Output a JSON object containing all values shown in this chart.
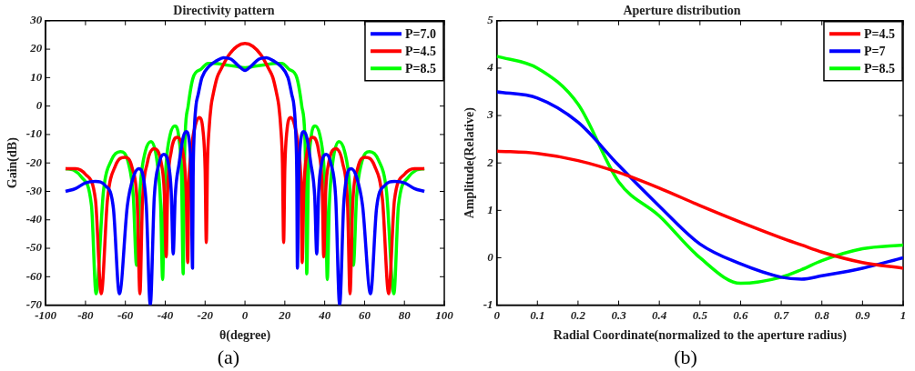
{
  "chart_data": [
    {
      "type": "line",
      "title": "Directivity pattern",
      "xlabel": "θ(degree)",
      "ylabel": "Gain(dB)",
      "annotations": [
        "(a)"
      ],
      "xlim": [
        -100,
        100
      ],
      "xticks": [
        -100,
        -80,
        -60,
        -40,
        -20,
        0,
        20,
        40,
        60,
        80,
        100
      ],
      "ylim": [
        -70,
        30
      ],
      "yticks": [
        -70,
        -60,
        -50,
        -40,
        -30,
        -20,
        -10,
        0,
        10,
        20,
        30
      ],
      "grid": false,
      "legend": "top right",
      "marker": "none",
      "line_style": "solid",
      "series": [
        {
          "name": "P=7.0",
          "color": "#0000ff",
          "x": [
            -90,
            -85,
            -80,
            -75,
            -70,
            -66,
            -63,
            -59,
            -56,
            -53.3,
            -51,
            -49.5,
            -47.5,
            -45.5,
            -43,
            -40.8,
            -38.5,
            -37,
            -36,
            -35,
            -33,
            -31,
            -29.5,
            -28,
            -27,
            -26.3,
            -26,
            -25.5,
            -24.6,
            -23.5,
            -21.6,
            -18,
            -14,
            -10.8,
            -7,
            -3,
            0,
            3,
            7,
            10.8,
            14,
            18,
            21.6,
            23.5,
            24.6,
            25.5,
            26,
            26.3,
            27,
            28,
            29.5,
            31,
            33,
            35,
            36,
            37,
            38.5,
            40.8,
            43,
            45.5,
            47.5,
            49.5,
            51,
            53.3,
            56,
            59,
            63,
            66,
            70,
            75,
            80,
            85,
            90
          ],
          "values": [
            -30,
            -29,
            -27,
            -26.5,
            -28,
            -36,
            -66,
            -35,
            -25,
            -22,
            -25,
            -35,
            -70,
            -32,
            -20,
            -17,
            -20,
            -30,
            -52,
            -32,
            -20,
            -11,
            -9,
            -12,
            -25,
            -57,
            -25,
            -10,
            0,
            4,
            10,
            14,
            16,
            17,
            16.5,
            14,
            12.5,
            14,
            16.5,
            17,
            16,
            14,
            10,
            4,
            0,
            -10,
            -25,
            -57,
            -25,
            -12,
            -9,
            -11,
            -20,
            -32,
            -52,
            -30,
            -20,
            -17,
            -20,
            -32,
            -70,
            -35,
            -25,
            -22,
            -25,
            -35,
            -66,
            -36,
            -28,
            -26.5,
            -27,
            -29,
            -30
          ]
        },
        {
          "name": "P=4.5",
          "color": "#ff0000",
          "x": [
            -90,
            -85,
            -80,
            -75,
            -72.1,
            -69,
            -65,
            -60.3,
            -56.5,
            -54,
            -52.7,
            -51.5,
            -49,
            -45.6,
            -42,
            -40.5,
            -39.5,
            -38.8,
            -37,
            -34,
            -31,
            -29.5,
            -28.7,
            -28.2,
            -27,
            -25,
            -23,
            -21,
            -20,
            -19.4,
            -18.8,
            -18,
            -17,
            -16,
            -14,
            -12,
            -8,
            -4,
            0,
            4,
            8,
            12,
            14,
            16,
            17,
            18,
            18.8,
            19.4,
            20,
            21,
            23,
            25,
            27,
            28.2,
            28.7,
            29.5,
            31,
            34,
            37,
            38.8,
            39.5,
            40.5,
            42,
            45.6,
            49,
            51.5,
            52.7,
            54,
            56.5,
            60.3,
            65,
            69,
            72.1,
            75,
            80,
            85,
            90
          ],
          "values": [
            -22,
            -22,
            -24,
            -33,
            -66,
            -33,
            -21,
            -18,
            -22,
            -35,
            -66,
            -35,
            -20,
            -15,
            -20,
            -30,
            -53,
            -30,
            -16,
            -11,
            -17,
            -30,
            -55,
            -30,
            -16,
            -7,
            -4,
            -9,
            -22,
            -48,
            -20,
            -8,
            0,
            4,
            10,
            13,
            18,
            21,
            22,
            21,
            18,
            13,
            10,
            4,
            0,
            -8,
            -20,
            -48,
            -22,
            -9,
            -4,
            -7,
            -16,
            -30,
            -55,
            -30,
            -17,
            -11,
            -16,
            -30,
            -53,
            -30,
            -20,
            -15,
            -20,
            -35,
            -66,
            -35,
            -22,
            -18,
            -21,
            -33,
            -66,
            -33,
            -24,
            -22,
            -22
          ]
        },
        {
          "name": "P=8.5",
          "color": "#00ff00",
          "x": [
            -90,
            -86,
            -82,
            -77,
            -74.7,
            -71,
            -67,
            -62.5,
            -58.5,
            -56,
            -54.4,
            -52.5,
            -50,
            -47.1,
            -44,
            -42.3,
            -41.3,
            -40.5,
            -39.5,
            -37.5,
            -35.2,
            -33,
            -31.8,
            -31,
            -30.5,
            -30,
            -28.5,
            -26,
            -22,
            -18.5,
            -15,
            -10,
            -5,
            0,
            5,
            10,
            15,
            18.5,
            22,
            26,
            28.5,
            30,
            30.5,
            31,
            31.8,
            33,
            35.2,
            37.5,
            39.5,
            40.5,
            41.3,
            42.3,
            44,
            47.1,
            50,
            52.5,
            54.4,
            56,
            58.5,
            62.5,
            67,
            71,
            74.7,
            77,
            82,
            86,
            90
          ],
          "values": [
            -22,
            -22.5,
            -25,
            -35,
            -66,
            -30,
            -19,
            -16,
            -20,
            -32,
            -56,
            -28,
            -16,
            -12.5,
            -20,
            -35,
            -61,
            -35,
            -20,
            -10,
            -7,
            -12,
            -25,
            -59,
            -25,
            -10,
            0,
            10,
            13,
            15,
            15,
            14.5,
            14,
            13.5,
            14,
            14.5,
            15,
            15,
            13,
            10,
            0,
            -10,
            -25,
            -59,
            -25,
            -12,
            -7,
            -10,
            -20,
            -35,
            -61,
            -35,
            -20,
            -12.5,
            -16,
            -28,
            -56,
            -32,
            -20,
            -16,
            -19,
            -30,
            -66,
            -35,
            -25,
            -22.5,
            -22
          ]
        }
      ]
    },
    {
      "type": "line",
      "title": "Aperture distribution",
      "xlabel": "Radial Coordinate(normalized to the aperture radius)",
      "ylabel": "Amplitude(Relative)",
      "annotations": [
        "(b)"
      ],
      "xlim": [
        0,
        1
      ],
      "xticks": [
        0,
        0.1,
        0.2,
        0.3,
        0.4,
        0.5,
        0.6,
        0.7,
        0.8,
        0.9,
        1
      ],
      "ylim": [
        -1,
        5
      ],
      "yticks": [
        -1,
        0,
        1,
        2,
        3,
        4,
        5
      ],
      "grid": false,
      "legend": "top right",
      "marker": "none",
      "line_style": "solid",
      "x": [
        0,
        0.1,
        0.2,
        0.3,
        0.4,
        0.5,
        0.6,
        0.7,
        0.75,
        0.8,
        0.9,
        1
      ],
      "series": [
        {
          "name": "P=4.5",
          "color": "#ff0000",
          "values": [
            2.25,
            2.2,
            2.05,
            1.8,
            1.47,
            1.1,
            0.75,
            0.42,
            0.27,
            0.12,
            -0.1,
            -0.22
          ]
        },
        {
          "name": "P=7",
          "color": "#0000ff",
          "values": [
            3.5,
            3.37,
            2.86,
            1.95,
            1.09,
            0.29,
            -0.13,
            -0.41,
            -0.45,
            -0.38,
            -0.22,
            0
          ]
        },
        {
          "name": "P=8.5",
          "color": "#00ff00",
          "values": [
            4.25,
            4.0,
            3.24,
            1.6,
            0.88,
            0,
            -0.54,
            -0.41,
            -0.25,
            -0.06,
            0.19,
            0.27
          ]
        }
      ]
    }
  ]
}
